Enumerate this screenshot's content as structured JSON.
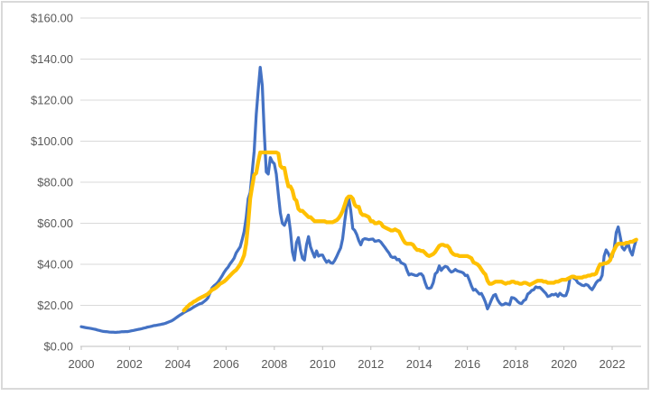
{
  "chart_data": {
    "type": "line",
    "title": "",
    "xlabel": "",
    "ylabel": "",
    "grid": true,
    "legend": "none",
    "y_axis": {
      "min": 0,
      "max": 160,
      "step": 20,
      "tick_labels": [
        "$0.00",
        "$20.00",
        "$40.00",
        "$60.00",
        "$80.00",
        "$100.00",
        "$120.00",
        "$140.00",
        "$160.00"
      ],
      "label_color": "#595959",
      "gridline_color": "#d9d9d9"
    },
    "x_axis": {
      "tick_labels": [
        "2000",
        "2002",
        "2004",
        "2006",
        "2008",
        "2010",
        "2012",
        "2014",
        "2016",
        "2018",
        "2020",
        "2022"
      ],
      "tick_years": [
        2000,
        2002,
        2004,
        2006,
        2008,
        2010,
        2012,
        2014,
        2016,
        2018,
        2020,
        2022
      ],
      "domain": [
        2000.0,
        2023.2
      ],
      "axis_color": "#bfbfbf",
      "label_color": "#595959"
    },
    "series": [
      {
        "name": "blue-price-line",
        "color": "#4472C4",
        "stroke_width": 3.25,
        "start_year": 2000.0,
        "points_per_year": 12,
        "values": [
          9.6,
          9.4,
          9.2,
          9.0,
          8.9,
          8.7,
          8.5,
          8.3,
          8.0,
          7.8,
          7.5,
          7.3,
          7.2,
          7.1,
          7.0,
          6.9,
          6.9,
          6.8,
          6.9,
          7.0,
          7.1,
          7.1,
          7.2,
          7.2,
          7.4,
          7.6,
          7.8,
          8.0,
          8.2,
          8.4,
          8.6,
          8.9,
          9.1,
          9.4,
          9.6,
          9.8,
          10.1,
          10.2,
          10.4,
          10.6,
          10.8,
          11.0,
          11.3,
          11.7,
          12.1,
          12.5,
          13.1,
          13.8,
          14.5,
          15.2,
          15.8,
          16.5,
          17.0,
          17.5,
          18.0,
          18.6,
          19.2,
          19.8,
          20.3,
          20.8,
          21.0,
          21.8,
          22.6,
          23.6,
          26.0,
          28.5,
          29.5,
          30.3,
          31.3,
          32.8,
          34.3,
          36.0,
          37.5,
          38.6,
          40.2,
          41.5,
          43.0,
          45.5,
          47.0,
          48.5,
          52.0,
          56.0,
          62.5,
          72.0,
          75.0,
          85.0,
          95.0,
          113.0,
          125.0,
          136.0,
          127.0,
          104.0,
          85.0,
          84.0,
          92.0,
          90.0,
          89.0,
          84.0,
          74.0,
          65.0,
          60.0,
          59.0,
          61.5,
          64.0,
          56.5,
          46.0,
          42.0,
          50.5,
          53.0,
          47.0,
          43.0,
          42.0,
          49.5,
          53.5,
          48.5,
          46.0,
          43.5,
          46.5,
          44.0,
          44.5,
          44.5,
          42.5,
          41.0,
          41.8,
          40.8,
          40.5,
          41.8,
          43.8,
          46.0,
          48.0,
          52.5,
          61.0,
          68.0,
          72.5,
          66.0,
          57.5,
          56.5,
          54.5,
          51.5,
          49.5,
          52.0,
          52.5,
          52.3,
          52.0,
          52.2,
          52.3,
          51.2,
          51.4,
          51.6,
          50.8,
          49.5,
          48.2,
          46.8,
          45.5,
          43.8,
          43.3,
          43.5,
          42.2,
          42.4,
          40.8,
          40.3,
          39.8,
          37.0,
          34.8,
          35.3,
          35.0,
          34.6,
          34.5,
          35.3,
          35.4,
          34.3,
          31.0,
          28.5,
          28.2,
          28.6,
          31.0,
          35.3,
          36.2,
          39.2,
          37.0,
          38.3,
          39.0,
          38.7,
          37.2,
          36.2,
          36.6,
          37.5,
          36.8,
          36.5,
          36.2,
          35.8,
          34.5,
          34.7,
          32.2,
          29.5,
          27.4,
          27.8,
          26.6,
          25.5,
          25.8,
          23.8,
          21.5,
          18.3,
          20.3,
          22.8,
          24.8,
          25.3,
          22.8,
          21.2,
          20.2,
          20.4,
          21.0,
          20.6,
          20.3,
          23.8,
          23.6,
          23.0,
          21.9,
          21.1,
          20.9,
          22.3,
          22.8,
          25.5,
          26.2,
          27.3,
          27.6,
          29.0,
          28.6,
          28.8,
          27.9,
          26.8,
          25.8,
          24.3,
          24.6,
          25.3,
          25.1,
          25.6,
          24.4,
          25.9,
          25.0,
          24.6,
          24.8,
          27.5,
          33.2,
          34.0,
          33.2,
          32.5,
          31.0,
          30.4,
          29.8,
          29.6,
          30.2,
          29.7,
          28.5,
          27.6,
          29.2,
          31.0,
          32.1,
          32.4,
          34.6,
          44.0,
          47.0,
          45.5,
          43.2,
          43.6,
          47.5,
          55.5,
          58.2,
          53.5,
          48.2,
          47.0,
          48.6,
          49.8,
          46.5,
          44.5,
          48.8,
          52.0
        ]
      },
      {
        "name": "gold-price-line",
        "color": "#FFC000",
        "stroke_width": 4.25,
        "start_year": 2004.25,
        "points_per_year": 12,
        "values": [
          17.5,
          18.5,
          19.5,
          20.5,
          21.0,
          21.8,
          22.3,
          23.0,
          23.5,
          24.0,
          24.5,
          25.0,
          25.6,
          26.5,
          27.5,
          28.0,
          28.6,
          29.5,
          30.5,
          31.0,
          31.6,
          32.5,
          33.5,
          34.5,
          35.5,
          36.5,
          37.2,
          38.5,
          40.0,
          42.0,
          44.5,
          50.0,
          60.0,
          72.0,
          78.0,
          83.5,
          84.5,
          90.0,
          94.5,
          94.5,
          94.5,
          94.5,
          94.5,
          94.5,
          94.5,
          94.5,
          94.5,
          94.0,
          88.0,
          87.0,
          87.0,
          82.0,
          78.0,
          78.0,
          76.0,
          72.0,
          71.0,
          67.0,
          66.0,
          66.0,
          65.0,
          64.0,
          63.0,
          63.0,
          62.0,
          61.0,
          61.0,
          61.0,
          61.0,
          61.0,
          61.0,
          60.5,
          60.5,
          60.5,
          60.5,
          61.0,
          61.5,
          62.5,
          64.0,
          66.0,
          69.0,
          72.0,
          73.0,
          73.0,
          72.0,
          69.0,
          68.0,
          68.0,
          65.0,
          64.0,
          64.0,
          63.5,
          63.0,
          61.0,
          61.0,
          60.0,
          60.0,
          60.5,
          60.0,
          58.5,
          58.0,
          57.5,
          57.0,
          56.5,
          56.5,
          57.0,
          56.5,
          56.0,
          54.0,
          52.0,
          50.5,
          50.0,
          50.0,
          50.0,
          49.5,
          48.0,
          47.0,
          47.0,
          46.5,
          46.5,
          45.5,
          44.5,
          44.0,
          44.5,
          45.0,
          46.0,
          47.5,
          49.0,
          49.5,
          49.5,
          49.0,
          49.0,
          48.0,
          46.0,
          45.0,
          44.5,
          44.5,
          44.0,
          44.0,
          44.0,
          44.0,
          44.0,
          43.5,
          43.0,
          41.0,
          40.5,
          40.0,
          39.0,
          37.5,
          36.0,
          35.0,
          32.0,
          30.5,
          30.5,
          31.0,
          31.5,
          31.5,
          31.5,
          31.5,
          31.0,
          30.5,
          31.0,
          31.0,
          31.5,
          31.5,
          31.0,
          31.0,
          30.5,
          30.5,
          31.0,
          31.0,
          30.5,
          30.0,
          30.5,
          31.0,
          31.5,
          32.0,
          32.0,
          32.0,
          31.5,
          31.5,
          31.0,
          31.0,
          31.0,
          31.0,
          31.5,
          31.5,
          32.0,
          32.5,
          32.5,
          32.5,
          33.0,
          33.5,
          34.0,
          34.0,
          33.5,
          33.5,
          33.5,
          33.5,
          34.0,
          34.0,
          34.5,
          34.5,
          35.0,
          35.0,
          35.5,
          38.0,
          40.0,
          40.0,
          40.5,
          40.5,
          41.0,
          42.0,
          45.0,
          47.0,
          49.0,
          50.0,
          50.0,
          50.0,
          50.0,
          50.5,
          50.5,
          51.0,
          51.0,
          51.5,
          52.0
        ]
      }
    ]
  }
}
